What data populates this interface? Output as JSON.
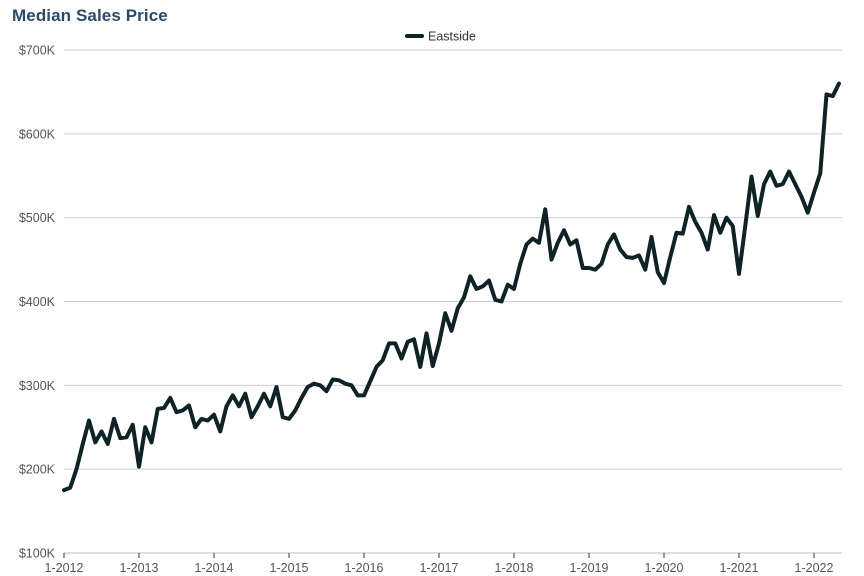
{
  "chart_data": {
    "type": "line",
    "title": "Median Sales Price",
    "xlabel": "",
    "ylabel": "",
    "ylim": [
      100000,
      700000
    ],
    "y_ticks": [
      100000,
      200000,
      300000,
      400000,
      500000,
      600000,
      700000
    ],
    "y_tick_labels": [
      "$100K",
      "$200K",
      "$300K",
      "$400K",
      "$500K",
      "$600K",
      "$700K"
    ],
    "x_ticks": [
      "1-2012",
      "1-2013",
      "1-2014",
      "1-2015",
      "1-2016",
      "1-2017",
      "1-2018",
      "1-2019",
      "1-2020",
      "1-2021",
      "1-2022"
    ],
    "x_start": "2012-01",
    "grid": "horizontal",
    "legend": "top-center",
    "series_color": "#0f2226",
    "series": [
      {
        "name": "Eastside",
        "values": [
          175000,
          178000,
          200000,
          230000,
          258000,
          232000,
          245000,
          230000,
          260000,
          237000,
          238000,
          253000,
          203000,
          250000,
          232000,
          272000,
          273000,
          285000,
          268000,
          270000,
          276000,
          250000,
          260000,
          258000,
          265000,
          245000,
          275000,
          288000,
          275000,
          290000,
          262000,
          275000,
          290000,
          275000,
          298000,
          262000,
          260000,
          270000,
          285000,
          298000,
          302000,
          300000,
          293000,
          307000,
          306000,
          302000,
          300000,
          288000,
          288000,
          305000,
          322000,
          330000,
          350000,
          350000,
          332000,
          352000,
          355000,
          322000,
          362000,
          323000,
          350000,
          386000,
          365000,
          392000,
          405000,
          430000,
          415000,
          418000,
          425000,
          402000,
          400000,
          420000,
          415000,
          445000,
          468000,
          475000,
          470000,
          510000,
          450000,
          470000,
          485000,
          468000,
          473000,
          440000,
          440000,
          438000,
          445000,
          468000,
          480000,
          462000,
          453000,
          452000,
          455000,
          438000,
          477000,
          435000,
          422000,
          453000,
          482000,
          481000,
          513000,
          495000,
          482000,
          462000,
          503000,
          482000,
          500000,
          490000,
          433000,
          490000,
          549000,
          502000,
          540000,
          555000,
          538000,
          540000,
          555000,
          540000,
          525000,
          506000,
          530000,
          553000,
          647000,
          645000,
          660000
        ]
      }
    ]
  }
}
